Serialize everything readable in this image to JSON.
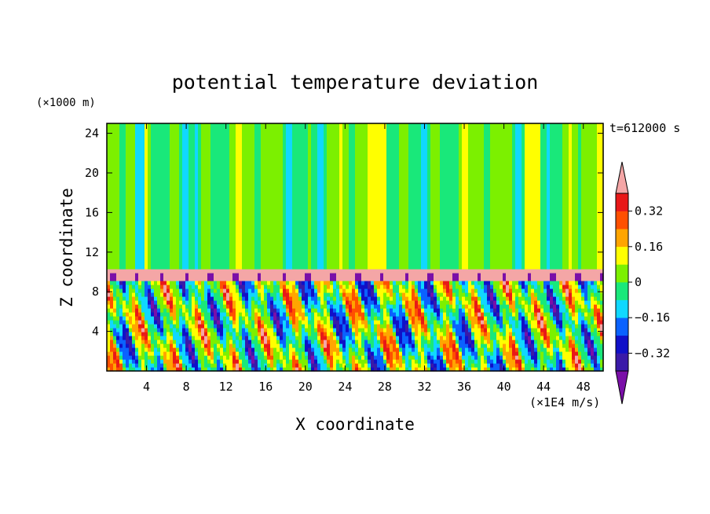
{
  "chart_data": {
    "type": "heatmap",
    "title": "potential temperature deviation",
    "xlabel": "X coordinate",
    "ylabel": "Z coordinate",
    "x_unit": "(×1E4 m/s)",
    "y_unit": "(×1000 m)",
    "time_label": "t=612000 s",
    "xlim": [
      0,
      50
    ],
    "ylim": [
      0,
      25
    ],
    "x_ticks": [
      4,
      8,
      12,
      16,
      20,
      24,
      28,
      32,
      36,
      40,
      44,
      48
    ],
    "y_ticks": [
      4,
      8,
      12,
      16,
      20,
      24
    ],
    "colorbar": {
      "levels": [
        -0.4,
        -0.32,
        -0.24,
        -0.16,
        -0.08,
        0,
        0.08,
        0.16,
        0.24,
        0.32,
        0.4
      ],
      "tick_labels": [
        "0.32",
        "0.16",
        "0",
        "−0.16",
        "−0.32"
      ],
      "tick_values": [
        0.32,
        0.16,
        0,
        -0.16,
        -0.32
      ],
      "colors": [
        "#7a0fa8",
        "#3a1aa8",
        "#1010c8",
        "#0a62ff",
        "#10d8ff",
        "#19e87a",
        "#7cf000",
        "#ffff00",
        "#ffa500",
        "#ff5000",
        "#e81818",
        "#f4a6a6"
      ],
      "extend": "both"
    },
    "features": {
      "upper_layer_value": 0.0,
      "tropopause_layer": {
        "z_range": [
          9,
          10.5
        ],
        "value": 0.4
      },
      "turbulent_layer": {
        "z_range": [
          0,
          9
        ],
        "value_range": [
          -0.4,
          0.4
        ]
      }
    }
  }
}
